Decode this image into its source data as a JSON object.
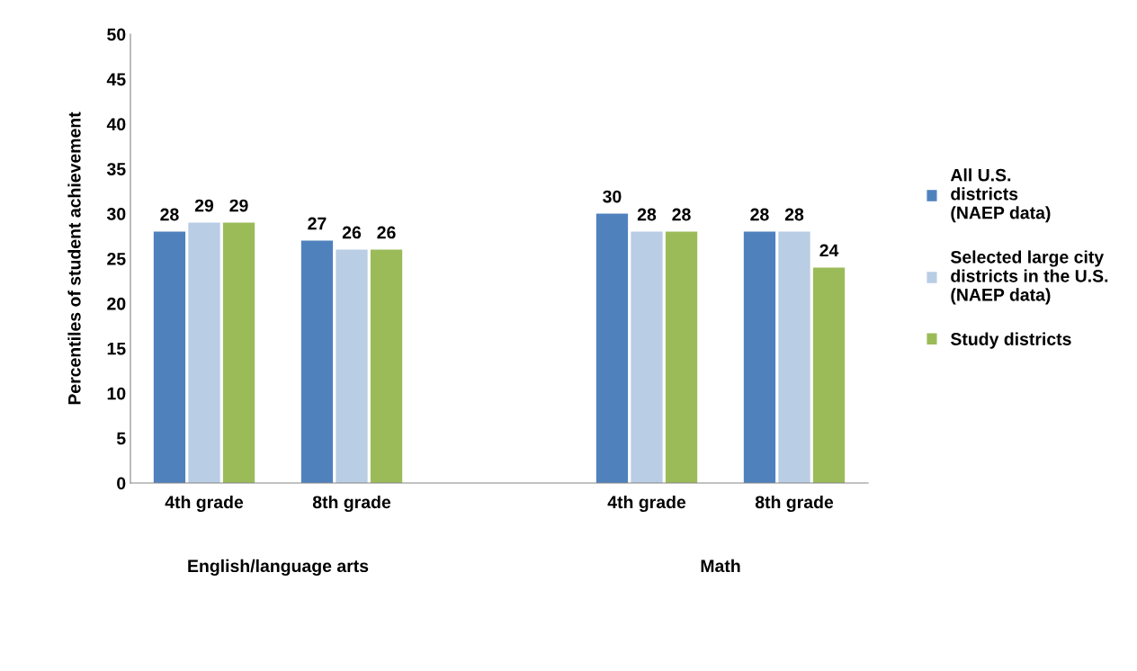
{
  "chart_data": {
    "type": "bar",
    "ylabel": "Percentiles of student achievement",
    "categories": [
      "4th grade",
      "8th grade",
      null,
      "4th grade",
      "8th grade"
    ],
    "series": [
      {
        "name": "All U.S.\ndistricts\n(NAEP data)",
        "color": "#4f81bd",
        "values": [
          28,
          27,
          null,
          30,
          28
        ]
      },
      {
        "name": "Selected large city\ndistricts in the U.S.\n(NAEP data)",
        "color": "#b9cde5",
        "values": [
          29,
          26,
          null,
          28,
          28
        ]
      },
      {
        "name": "Study districts",
        "color": "#9bbb59",
        "values": [
          29,
          26,
          null,
          28,
          24
        ]
      }
    ],
    "ylim": [
      0,
      50
    ],
    "yticks": [
      0,
      5,
      10,
      15,
      20,
      25,
      30,
      35,
      40,
      45,
      50
    ],
    "annotations": [
      "English/language arts",
      "Math"
    ],
    "data_labels": true,
    "grid": false,
    "legend": "right"
  }
}
